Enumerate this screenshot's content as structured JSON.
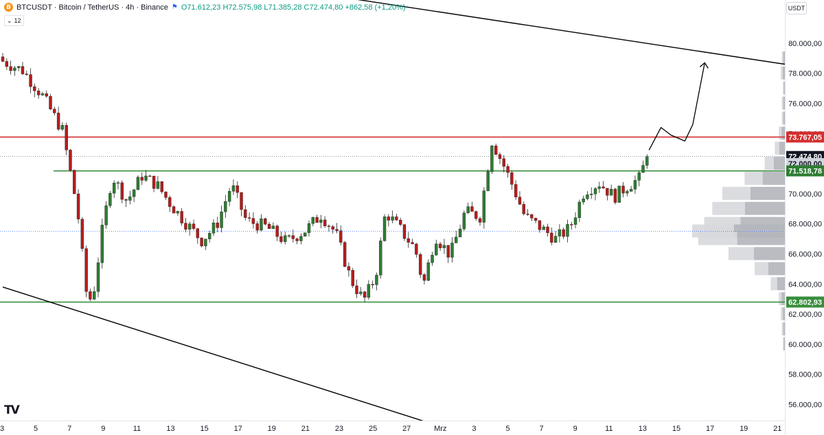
{
  "header": {
    "symbol_text": "BTCUSDT · Bitcoin / TetherUS · 4h · Binance",
    "open": "O71.612,23",
    "high": "H72.575,98",
    "low": "L71.385,28",
    "close": "C72.474,80",
    "change": "+862,58 (+1,20%)",
    "indicator_label": "12",
    "coin_glyph": "B"
  },
  "currency_button": "USDT",
  "logo_text": "TV",
  "colors": {
    "up": "#089981",
    "down": "#f23645",
    "up_candle": "#2e7d32",
    "down_candle": "#b71c1c",
    "resistance": "#d32f2f",
    "support": "#388e3c",
    "trend": "#000000"
  },
  "chart_data": {
    "type": "candlestick",
    "symbol": "BTCUSDT",
    "timeframe": "4h",
    "ylim": [
      55000,
      82500
    ],
    "y_ticks": [
      "56.000,00",
      "58.000,00",
      "60.000,00",
      "62.000,00",
      "64.000,00",
      "66.000,00",
      "68.000,00",
      "70.000,00",
      "72.000,00",
      "74.000,00",
      "76.000,00",
      "78.000,00",
      "80.000,00"
    ],
    "x_tick_labels": [
      "3",
      "5",
      "7",
      "9",
      "11",
      "13",
      "15",
      "17",
      "19",
      "21",
      "23",
      "25",
      "27",
      "Mrz",
      "3",
      "5",
      "7",
      "9",
      "11",
      "13",
      "15",
      "17",
      "19",
      "21"
    ],
    "price_labels": [
      {
        "text": "73.767,05",
        "value": 73767.05,
        "color": "#d32f2f"
      },
      {
        "text": "72.474,80",
        "value": 72474.8,
        "color": "#131722"
      },
      {
        "text": "72.000,00",
        "value": 72000,
        "color": "#ffffff"
      },
      {
        "text": "71.518,78",
        "value": 71518.78,
        "color": "#2e7d32"
      },
      {
        "text": "62.802,93",
        "value": 62802.93,
        "color": "#388e3c"
      }
    ],
    "horizontal_levels": [
      {
        "name": "resistance",
        "value": 73767.05
      },
      {
        "name": "support-upper",
        "value": 71518.78
      },
      {
        "name": "support-lower",
        "value": 62802.93
      },
      {
        "name": "last-price",
        "value": 72474.8
      },
      {
        "name": "poc",
        "value": 67500
      }
    ],
    "close_path": [
      {
        "x": 0,
        "y": 78800
      },
      {
        "x": 2,
        "y": 78200
      },
      {
        "x": 4,
        "y": 76500
      },
      {
        "x": 6,
        "y": 74200
      },
      {
        "x": 7.5,
        "y": 69000
      },
      {
        "x": 8.4,
        "y": 63500
      },
      {
        "x": 9.0,
        "y": 62800
      },
      {
        "x": 10.0,
        "y": 67500
      },
      {
        "x": 11.0,
        "y": 71200
      },
      {
        "x": 12.5,
        "y": 69500
      },
      {
        "x": 14.0,
        "y": 71200
      },
      {
        "x": 15.5,
        "y": 70600
      },
      {
        "x": 17.0,
        "y": 69200
      },
      {
        "x": 18.5,
        "y": 68000
      },
      {
        "x": 20.0,
        "y": 66900
      },
      {
        "x": 21.5,
        "y": 67900
      },
      {
        "x": 23.0,
        "y": 70600
      },
      {
        "x": 24.5,
        "y": 68200
      },
      {
        "x": 26.5,
        "y": 67800
      },
      {
        "x": 28.5,
        "y": 66800
      },
      {
        "x": 30.5,
        "y": 67600
      },
      {
        "x": 32.0,
        "y": 68600
      },
      {
        "x": 33.5,
        "y": 67400
      },
      {
        "x": 35.0,
        "y": 64300
      },
      {
        "x": 36.3,
        "y": 62900
      },
      {
        "x": 37.5,
        "y": 64500
      },
      {
        "x": 38.5,
        "y": 68800
      },
      {
        "x": 40.0,
        "y": 67600
      },
      {
        "x": 41.5,
        "y": 66300
      },
      {
        "x": 42.3,
        "y": 63900
      },
      {
        "x": 43.5,
        "y": 67200
      },
      {
        "x": 45.0,
        "y": 65900
      },
      {
        "x": 46.5,
        "y": 68800
      },
      {
        "x": 48.0,
        "y": 68500
      },
      {
        "x": 49.2,
        "y": 73500
      },
      {
        "x": 50.3,
        "y": 72000
      },
      {
        "x": 51.3,
        "y": 70500
      },
      {
        "x": 52.5,
        "y": 68500
      },
      {
        "x": 54.0,
        "y": 67800
      },
      {
        "x": 55.6,
        "y": 67000
      },
      {
        "x": 57.0,
        "y": 67700
      },
      {
        "x": 58.5,
        "y": 70200
      },
      {
        "x": 60.0,
        "y": 70700
      },
      {
        "x": 61.5,
        "y": 69800
      },
      {
        "x": 62.8,
        "y": 70500
      },
      {
        "x": 64.0,
        "y": 71000
      },
      {
        "x": 64.8,
        "y": 72475
      }
    ],
    "volume_profile": [
      {
        "price": 79000,
        "volume": 3
      },
      {
        "price": 78000,
        "volume": 4
      },
      {
        "price": 77000,
        "volume": 2
      },
      {
        "price": 76000,
        "volume": 3
      },
      {
        "price": 75000,
        "volume": 3
      },
      {
        "price": 74000,
        "volume": 6
      },
      {
        "price": 73000,
        "volume": 10
      },
      {
        "price": 72000,
        "volume": 20
      },
      {
        "price": 71000,
        "volume": 40
      },
      {
        "price": 70000,
        "volume": 62
      },
      {
        "price": 69000,
        "volume": 72
      },
      {
        "price": 68000,
        "volume": 80
      },
      {
        "price": 67500,
        "volume": 92
      },
      {
        "price": 67000,
        "volume": 86
      },
      {
        "price": 66000,
        "volume": 56
      },
      {
        "price": 65000,
        "volume": 30
      },
      {
        "price": 64000,
        "volume": 14
      },
      {
        "price": 63000,
        "volume": 6
      },
      {
        "price": 62000,
        "volume": 4
      },
      {
        "price": 61000,
        "volume": 3
      },
      {
        "price": 60000,
        "volume": 2
      }
    ],
    "trendlines": [
      {
        "name": "upper-trendline",
        "from": {
          "x": 26.7,
          "y": 83800
        },
        "to": {
          "x": 79.7,
          "y": 78500
        }
      },
      {
        "name": "lower-trendline",
        "from": {
          "x": 0,
          "y": 63800
        },
        "to": {
          "x": 43.7,
          "y": 54600
        }
      }
    ],
    "projection": [
      {
        "x": 65.0,
        "y": 72900
      },
      {
        "x": 66.2,
        "y": 74400
      },
      {
        "x": 67.2,
        "y": 73900
      },
      {
        "x": 68.6,
        "y": 73500
      },
      {
        "x": 69.4,
        "y": 74600
      },
      {
        "x": 70.6,
        "y": 78700
      }
    ],
    "grid": false,
    "legend": "top-left"
  }
}
